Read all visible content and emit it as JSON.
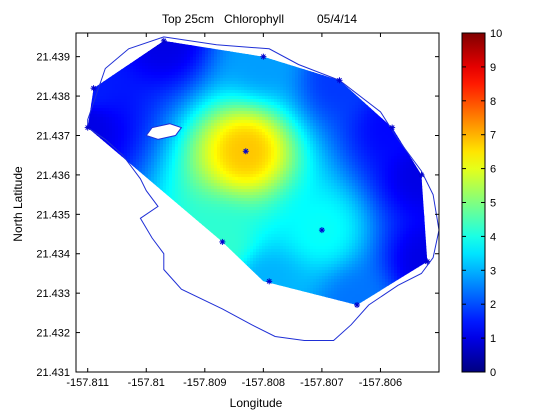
{
  "chart_data": {
    "type": "heatmap",
    "title": {
      "depth": "Top 25cm",
      "variable": "Chlorophyll",
      "date": "05/4/14"
    },
    "xlabel": "Longitude",
    "ylabel": "North Latitude",
    "xlim": [
      -157.8112,
      -157.805
    ],
    "ylim": [
      21.431,
      21.4396
    ],
    "xticks": [
      "-157.811",
      "-157.81",
      "-157.809",
      "-157.808",
      "-157.807",
      "-157.806"
    ],
    "xtick_values": [
      -157.811,
      -157.81,
      -157.809,
      -157.808,
      -157.807,
      -157.806
    ],
    "yticks": [
      "21.431",
      "21.432",
      "21.433",
      "21.434",
      "21.435",
      "21.436",
      "21.437",
      "21.438",
      "21.439"
    ],
    "ytick_values": [
      21.431,
      21.432,
      21.433,
      21.434,
      21.435,
      21.436,
      21.437,
      21.438,
      21.439
    ],
    "colorbar": {
      "colormap": "jet",
      "range": [
        0,
        10
      ],
      "ticks": [
        "0",
        "1",
        "2",
        "3",
        "4",
        "5",
        "6",
        "7",
        "8",
        "9",
        "10"
      ]
    },
    "interpolation_hull": [
      [
        -157.811,
        21.4372
      ],
      [
        -157.8109,
        21.4382
      ],
      [
        -157.8097,
        21.4394
      ],
      [
        -157.808,
        21.439
      ],
      [
        -157.8067,
        21.4384
      ],
      [
        -157.8058,
        21.4372
      ],
      [
        -157.8053,
        21.436
      ],
      [
        -157.8052,
        21.4338
      ],
      [
        -157.8064,
        21.4327
      ],
      [
        -157.808,
        21.4333
      ],
      [
        -157.8087,
        21.4343
      ],
      [
        -157.811,
        21.4372
      ]
    ],
    "sample_points": [
      {
        "lon": -157.811,
        "lat": 21.4372,
        "value": 1.0
      },
      {
        "lon": -157.8109,
        "lat": 21.4382,
        "value": 1.5
      },
      {
        "lon": -157.8097,
        "lat": 21.4394,
        "value": 1.0
      },
      {
        "lon": -157.808,
        "lat": 21.439,
        "value": 2.8
      },
      {
        "lon": -157.8067,
        "lat": 21.4384,
        "value": 1.8
      },
      {
        "lon": -157.8058,
        "lat": 21.4372,
        "value": 1.3
      },
      {
        "lon": -157.8053,
        "lat": 21.436,
        "value": 1.0
      },
      {
        "lon": -157.8052,
        "lat": 21.4338,
        "value": 1.0
      },
      {
        "lon": -157.8064,
        "lat": 21.4327,
        "value": 2.4
      },
      {
        "lon": -157.807,
        "lat": 21.4346,
        "value": 3.8
      },
      {
        "lon": -157.8079,
        "lat": 21.4333,
        "value": 3.0
      },
      {
        "lon": -157.8087,
        "lat": 21.4343,
        "value": 4.2
      },
      {
        "lon": -157.8083,
        "lat": 21.4366,
        "value": 6.8
      }
    ],
    "shoreline": [
      [
        -157.811,
        21.4374
      ],
      [
        -157.8107,
        21.4387
      ],
      [
        -157.8103,
        21.4392
      ],
      [
        -157.8097,
        21.4395
      ],
      [
        -157.8088,
        21.4393
      ],
      [
        -157.8079,
        21.4392
      ],
      [
        -157.8074,
        21.4388
      ],
      [
        -157.8067,
        21.4384
      ],
      [
        -157.806,
        21.4376
      ],
      [
        -157.8057,
        21.4369
      ],
      [
        -157.8053,
        21.4361
      ],
      [
        -157.8051,
        21.4355
      ],
      [
        -157.805,
        21.4346
      ],
      [
        -157.8051,
        21.4339
      ],
      [
        -157.8053,
        21.4335
      ],
      [
        -157.8057,
        21.4332
      ],
      [
        -157.8062,
        21.4327
      ],
      [
        -157.8065,
        21.4322
      ],
      [
        -157.8068,
        21.4318
      ],
      [
        -157.8073,
        21.4318
      ],
      [
        -157.8078,
        21.4319
      ],
      [
        -157.8082,
        21.4322
      ],
      [
        -157.8087,
        21.4326
      ],
      [
        -157.8094,
        21.4331
      ],
      [
        -157.8097,
        21.4336
      ],
      [
        -157.8097,
        21.434
      ],
      [
        -157.8099,
        21.4344
      ],
      [
        -157.8101,
        21.4349
      ],
      [
        -157.8098,
        21.4352
      ],
      [
        -157.81,
        21.4356
      ],
      [
        -157.8101,
        21.4359
      ],
      [
        -157.8104,
        21.4365
      ],
      [
        -157.8107,
        21.4369
      ],
      [
        -157.811,
        21.4372
      ]
    ],
    "island": [
      [
        -157.8099,
        21.4372
      ],
      [
        -157.8096,
        21.4373
      ],
      [
        -157.8094,
        21.4372
      ],
      [
        -157.8095,
        21.437
      ],
      [
        -157.8098,
        21.4369
      ],
      [
        -157.81,
        21.437
      ],
      [
        -157.8099,
        21.4372
      ]
    ],
    "grid": false
  }
}
